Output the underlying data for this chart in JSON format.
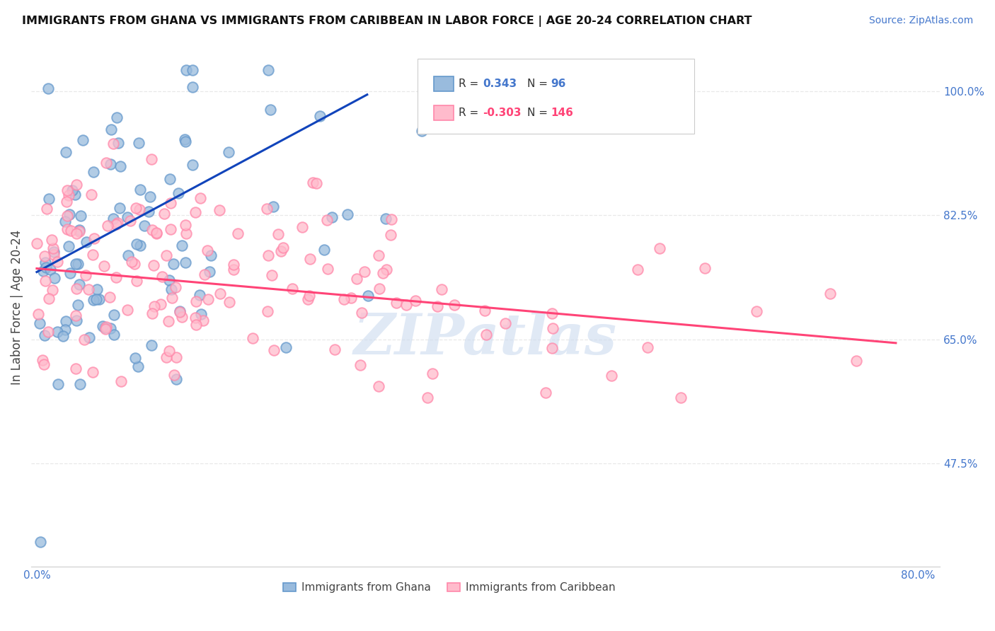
{
  "title": "IMMIGRANTS FROM GHANA VS IMMIGRANTS FROM CARIBBEAN IN LABOR FORCE | AGE 20-24 CORRELATION CHART",
  "source": "Source: ZipAtlas.com",
  "ylabel": "In Labor Force | Age 20-24",
  "xlim": [
    -0.005,
    0.82
  ],
  "ylim": [
    0.33,
    1.06
  ],
  "xticks": [
    0.0,
    0.1,
    0.2,
    0.3,
    0.4,
    0.5,
    0.6,
    0.7,
    0.8
  ],
  "xticklabels": [
    "0.0%",
    "",
    "",
    "",
    "",
    "",
    "",
    "",
    "80.0%"
  ],
  "yticks": [
    0.475,
    0.65,
    0.825,
    1.0
  ],
  "yticklabels": [
    "47.5%",
    "65.0%",
    "82.5%",
    "100.0%"
  ],
  "ghana_color": "#99bbdd",
  "ghana_edge_color": "#6699cc",
  "caribbean_color": "#ffbbcc",
  "caribbean_edge_color": "#ff88aa",
  "ghana_R": 0.343,
  "ghana_N": 96,
  "caribbean_R": -0.303,
  "caribbean_N": 146,
  "ghana_line_color": "#1144bb",
  "caribbean_line_color": "#ff4477",
  "ghana_line_x": [
    0.0,
    0.3
  ],
  "ghana_line_y": [
    0.745,
    0.995
  ],
  "caribbean_line_x": [
    0.0,
    0.78
  ],
  "caribbean_line_y": [
    0.75,
    0.645
  ],
  "watermark": "ZIPatlas",
  "legend_labels": [
    "Immigrants from Ghana",
    "Immigrants from Caribbean"
  ],
  "tick_color": "#4477cc",
  "grid_color": "#e8e8e8",
  "title_color": "#111111",
  "source_color": "#4477cc"
}
